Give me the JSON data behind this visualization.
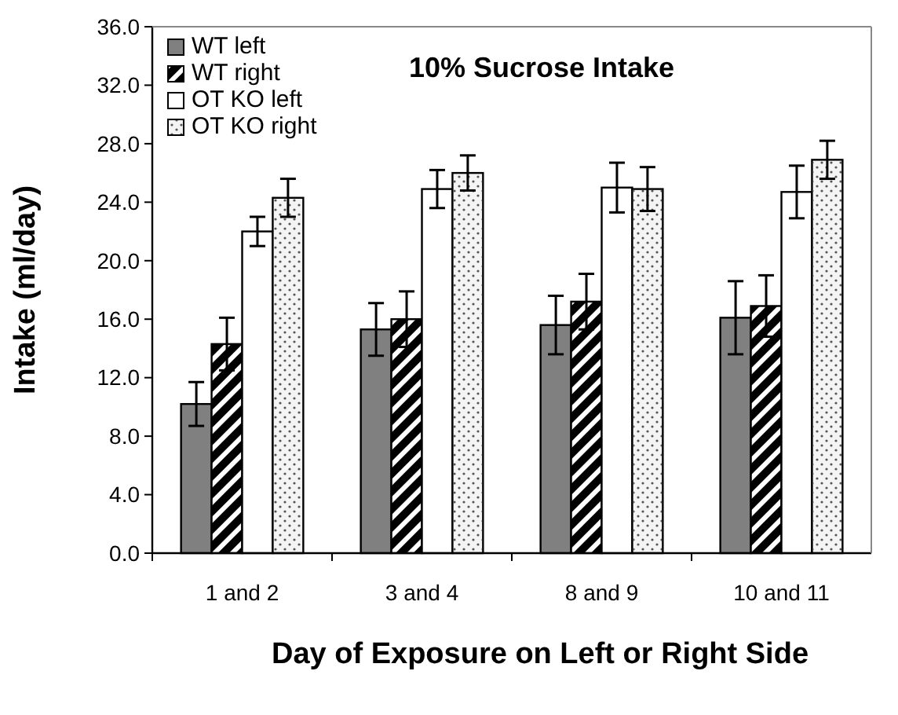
{
  "chart_data": {
    "type": "bar",
    "title": "10% Sucrose Intake",
    "xlabel": "Day of Exposure on Left or Right Side",
    "ylabel": "Intake (ml/day)",
    "categories": [
      "1 and 2",
      "3 and 4",
      "8 and 9",
      "10 and 11"
    ],
    "series": [
      {
        "name": "WT left",
        "color": "#808080",
        "values": [
          10.2,
          15.3,
          15.6,
          16.1
        ],
        "errors": [
          1.5,
          1.8,
          2.0,
          2.5
        ]
      },
      {
        "name": "WT right",
        "color": "#000000",
        "values": [
          14.3,
          16.0,
          17.2,
          16.9
        ],
        "errors": [
          1.8,
          1.9,
          1.9,
          2.1
        ]
      },
      {
        "name": "OT KO left",
        "color": "#ffffff",
        "values": [
          22.0,
          24.9,
          25.0,
          24.7
        ],
        "errors": [
          1.0,
          1.3,
          1.7,
          1.8
        ]
      },
      {
        "name": "OT KO right",
        "color": "#f4f4f4",
        "values": [
          24.3,
          26.0,
          24.9,
          26.9
        ],
        "errors": [
          1.3,
          1.2,
          1.5,
          1.3
        ]
      }
    ],
    "ylim": [
      0,
      36
    ],
    "yticks": [
      {
        "value": 0,
        "label": "0.0"
      },
      {
        "value": 4,
        "label": "4.0"
      },
      {
        "value": 8,
        "label": "8.0"
      },
      {
        "value": 12,
        "label": "12.0"
      },
      {
        "value": 16,
        "label": "16.0"
      },
      {
        "value": 20,
        "label": "20.0"
      },
      {
        "value": 24,
        "label": "24.0"
      },
      {
        "value": 28,
        "label": "28.0"
      },
      {
        "value": 32,
        "label": "32.0"
      },
      {
        "value": 36,
        "label": "36.0"
      }
    ],
    "grid": false,
    "legend": "top left"
  }
}
